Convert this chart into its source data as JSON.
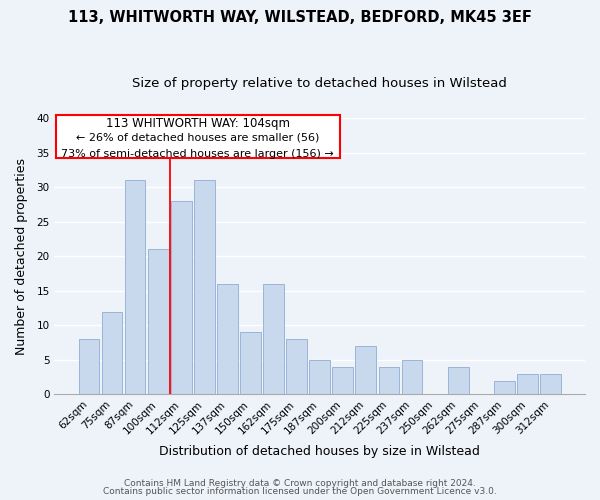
{
  "title": "113, WHITWORTH WAY, WILSTEAD, BEDFORD, MK45 3EF",
  "subtitle": "Size of property relative to detached houses in Wilstead",
  "xlabel": "Distribution of detached houses by size in Wilstead",
  "ylabel": "Number of detached properties",
  "bar_color": "#c8d9ee",
  "bar_edge_color": "#9ab5d8",
  "bin_labels": [
    "62sqm",
    "75sqm",
    "87sqm",
    "100sqm",
    "112sqm",
    "125sqm",
    "137sqm",
    "150sqm",
    "162sqm",
    "175sqm",
    "187sqm",
    "200sqm",
    "212sqm",
    "225sqm",
    "237sqm",
    "250sqm",
    "262sqm",
    "275sqm",
    "287sqm",
    "300sqm",
    "312sqm"
  ],
  "bar_heights": [
    8,
    12,
    31,
    21,
    28,
    31,
    16,
    9,
    16,
    8,
    5,
    4,
    7,
    4,
    5,
    0,
    4,
    0,
    2,
    3,
    3
  ],
  "ylim": [
    0,
    40
  ],
  "yticks": [
    0,
    5,
    10,
    15,
    20,
    25,
    30,
    35,
    40
  ],
  "annotation_title": "113 WHITWORTH WAY: 104sqm",
  "annotation_line1": "← 26% of detached houses are smaller (56)",
  "annotation_line2": "73% of semi-detached houses are larger (156) →",
  "footer_line1": "Contains HM Land Registry data © Crown copyright and database right 2024.",
  "footer_line2": "Contains public sector information licensed under the Open Government Licence v3.0.",
  "background_color": "#eef2f9",
  "grid_color": "#ffffff",
  "title_fontsize": 10.5,
  "subtitle_fontsize": 9.5,
  "axis_label_fontsize": 9,
  "tick_fontsize": 7.5,
  "footer_fontsize": 6.5,
  "annotation_fontsize": 8.5
}
